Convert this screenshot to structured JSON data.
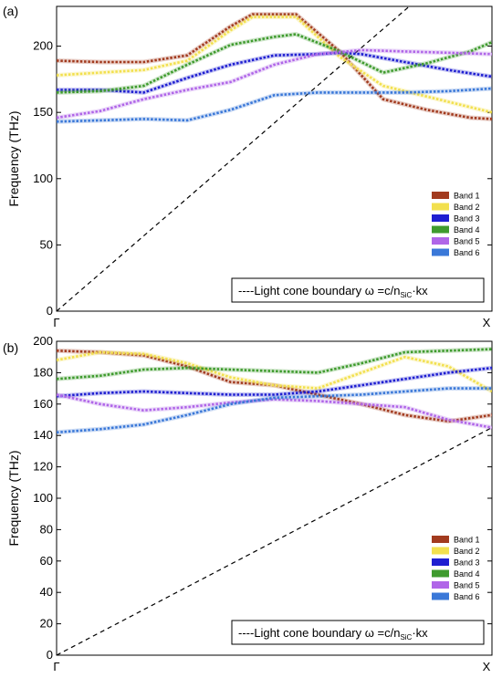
{
  "colors": {
    "band1": "#a23b1f",
    "band2": "#f2e04e",
    "band3": "#1f1fd1",
    "band4": "#3f9b2e",
    "band5": "#b066e8",
    "band6": "#3a78d8",
    "light_cone": "#000000"
  },
  "chart_data": [
    {
      "panel_label": "(a)",
      "type": "line",
      "xlabel": "",
      "ylabel": "Frequency (THz)",
      "x_tick_labels": [
        "Γ",
        "X"
      ],
      "xlim": [
        0,
        1
      ],
      "ylim": [
        0,
        230
      ],
      "yticks": [
        0,
        50,
        100,
        150,
        200
      ],
      "yticklabels": [
        "0",
        "50",
        "100",
        "150",
        "200"
      ],
      "grid": false,
      "legend_position": "bottom-right",
      "series": [
        {
          "name": "Band 1",
          "color_key": "band1",
          "x": [
            0,
            0.1,
            0.2,
            0.3,
            0.4,
            0.45,
            0.55,
            0.65,
            0.75,
            0.85,
            0.95,
            1.0
          ],
          "y": [
            189,
            188,
            188,
            193,
            215,
            224,
            224,
            196,
            160,
            152,
            146,
            145
          ]
        },
        {
          "name": "Band 2",
          "color_key": "band2",
          "x": [
            0,
            0.1,
            0.2,
            0.3,
            0.4,
            0.45,
            0.55,
            0.65,
            0.75,
            0.85,
            0.95,
            1.0
          ],
          "y": [
            178,
            180,
            182,
            189,
            212,
            222,
            222,
            192,
            170,
            162,
            154,
            150
          ]
        },
        {
          "name": "Band 3",
          "color_key": "band3",
          "x": [
            0,
            0.1,
            0.2,
            0.3,
            0.4,
            0.5,
            0.6,
            0.65,
            0.7,
            0.8,
            0.9,
            1.0
          ],
          "y": [
            167,
            167,
            165,
            176,
            186,
            193,
            194,
            195,
            194,
            188,
            182,
            177
          ]
        },
        {
          "name": "Band 4",
          "color_key": "band4",
          "x": [
            0,
            0.1,
            0.2,
            0.3,
            0.4,
            0.5,
            0.55,
            0.65,
            0.75,
            0.85,
            0.95,
            1.0
          ],
          "y": [
            165,
            166,
            170,
            186,
            201,
            207,
            209,
            196,
            180,
            187,
            196,
            203
          ]
        },
        {
          "name": "Band 5",
          "color_key": "band5",
          "x": [
            0,
            0.1,
            0.2,
            0.3,
            0.4,
            0.5,
            0.6,
            0.7,
            0.8,
            0.9,
            1.0
          ],
          "y": [
            146,
            151,
            160,
            167,
            173,
            186,
            194,
            197,
            196,
            195,
            194
          ]
        },
        {
          "name": "Band 6",
          "color_key": "band6",
          "x": [
            0,
            0.1,
            0.2,
            0.3,
            0.4,
            0.5,
            0.6,
            0.7,
            0.8,
            0.9,
            1.0
          ],
          "y": [
            143,
            144,
            145,
            144,
            152,
            163,
            165,
            165,
            165,
            166,
            168
          ]
        }
      ],
      "light_cone": {
        "label_main": "----Light cone boundary ω =c/n",
        "label_sub": "SiC",
        "label_tail": "·kx",
        "x": [
          0,
          0.81
        ],
        "y": [
          0,
          230
        ]
      }
    },
    {
      "panel_label": "(b)",
      "type": "line",
      "xlabel": "",
      "ylabel": "Frequency (THz)",
      "x_tick_labels": [
        "Γ",
        "X"
      ],
      "xlim": [
        0,
        1
      ],
      "ylim": [
        0,
        200
      ],
      "yticks": [
        0,
        20,
        40,
        60,
        80,
        100,
        120,
        140,
        160,
        180,
        200
      ],
      "yticklabels": [
        "0",
        "20",
        "40",
        "60",
        "80",
        "100",
        "120",
        "140",
        "160",
        "180",
        "200"
      ],
      "grid": false,
      "legend_position": "bottom-right",
      "series": [
        {
          "name": "Band 1",
          "color_key": "band1",
          "x": [
            0,
            0.1,
            0.2,
            0.3,
            0.4,
            0.5,
            0.6,
            0.7,
            0.8,
            0.9,
            1.0
          ],
          "y": [
            194,
            193,
            191,
            184,
            174,
            172,
            166,
            160,
            153,
            149,
            153
          ]
        },
        {
          "name": "Band 2",
          "color_key": "band2",
          "x": [
            0,
            0.1,
            0.2,
            0.3,
            0.4,
            0.5,
            0.6,
            0.7,
            0.8,
            0.9,
            1.0
          ],
          "y": [
            188,
            193,
            192,
            186,
            177,
            172,
            170,
            180,
            190,
            184,
            168
          ]
        },
        {
          "name": "Band 3",
          "color_key": "band3",
          "x": [
            0,
            0.1,
            0.2,
            0.3,
            0.4,
            0.5,
            0.6,
            0.7,
            0.8,
            0.9,
            1.0
          ],
          "y": [
            165,
            167,
            168,
            167,
            166,
            166,
            168,
            172,
            176,
            180,
            183
          ]
        },
        {
          "name": "Band 4",
          "color_key": "band4",
          "x": [
            0,
            0.1,
            0.2,
            0.3,
            0.4,
            0.5,
            0.6,
            0.7,
            0.8,
            0.9,
            1.0
          ],
          "y": [
            176,
            178,
            182,
            183,
            182,
            181,
            180,
            186,
            193,
            194,
            195
          ]
        },
        {
          "name": "Band 5",
          "color_key": "band5",
          "x": [
            0,
            0.1,
            0.2,
            0.3,
            0.4,
            0.5,
            0.6,
            0.7,
            0.8,
            0.9,
            1.0
          ],
          "y": [
            166,
            160,
            156,
            158,
            161,
            163,
            162,
            160,
            158,
            150,
            145
          ]
        },
        {
          "name": "Band 6",
          "color_key": "band6",
          "x": [
            0,
            0.1,
            0.2,
            0.3,
            0.4,
            0.5,
            0.6,
            0.7,
            0.8,
            0.9,
            1.0
          ],
          "y": [
            142,
            144,
            147,
            153,
            160,
            164,
            165,
            166,
            168,
            170,
            170
          ]
        }
      ],
      "light_cone": {
        "label_main": "----Light cone boundary ω =c/n",
        "label_sub": "SiC",
        "label_tail": "·kx",
        "x": [
          0,
          1
        ],
        "y": [
          0,
          145
        ]
      }
    }
  ]
}
